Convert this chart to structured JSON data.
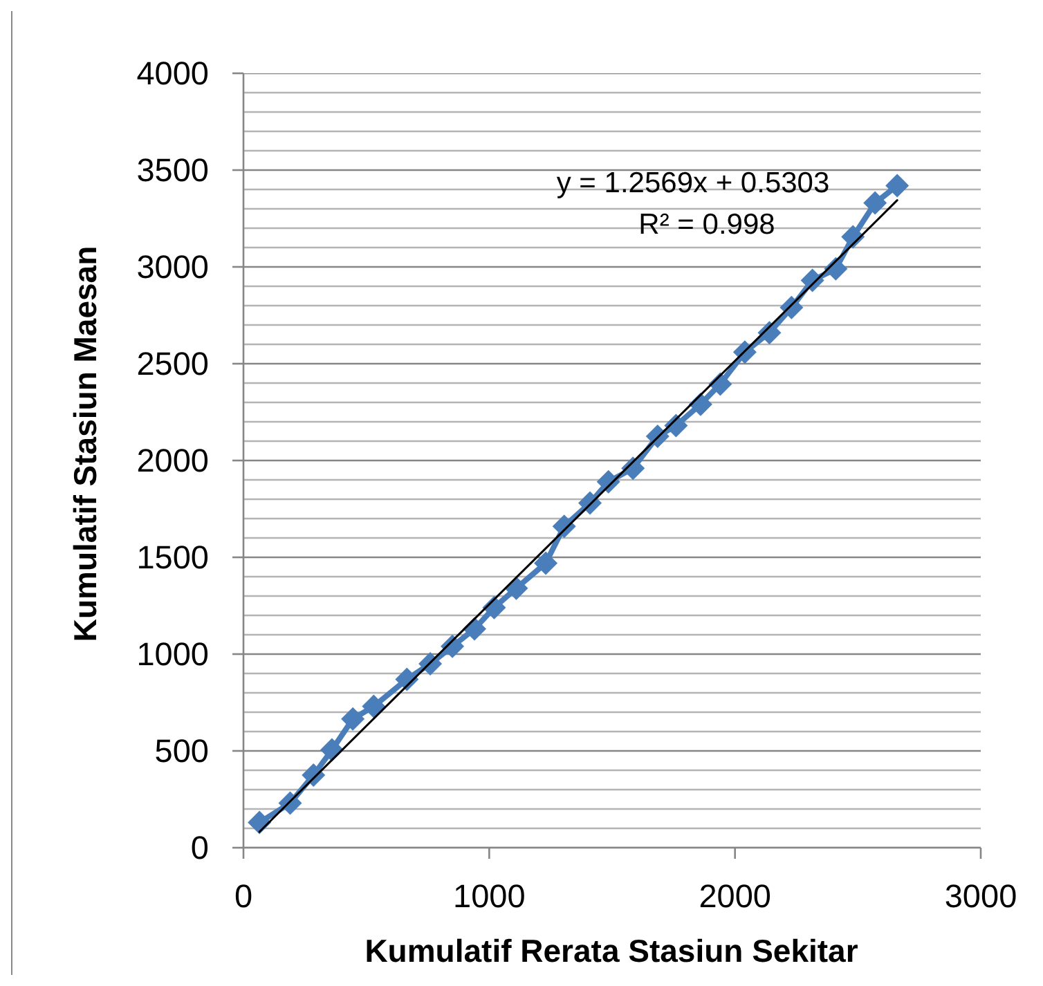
{
  "chart_data": {
    "type": "line",
    "xlabel": "Kumulatif Rerata Stasiun Sekitar",
    "ylabel": "Kumulatif Stasiun Maesan",
    "annotations": [
      "y = 1.2569x + 0.5303",
      "R² = 0.998"
    ],
    "xlim": [
      0,
      3000
    ],
    "xticks": [
      0,
      1000,
      2000,
      3000
    ],
    "ylim": [
      0,
      4000
    ],
    "yticks": [
      0,
      {
        "value": 100,
        "label": null
      },
      {
        "value": 200,
        "label": null
      },
      {
        "value": 300,
        "label": null
      },
      {
        "value": 400,
        "label": null
      },
      500,
      {
        "value": 600,
        "label": null
      },
      {
        "value": 700,
        "label": null
      },
      {
        "value": 800,
        "label": null
      },
      {
        "value": 900,
        "label": null
      },
      1000,
      {
        "value": 1100,
        "label": null
      },
      {
        "value": 1200,
        "label": null
      },
      {
        "value": 1300,
        "label": null
      },
      {
        "value": 1400,
        "label": null
      },
      1500,
      {
        "value": 1600,
        "label": null
      },
      {
        "value": 1700,
        "label": null
      },
      {
        "value": 1800,
        "label": null
      },
      {
        "value": 1900,
        "label": null
      },
      2000,
      {
        "value": 2100,
        "label": null
      },
      {
        "value": 2200,
        "label": null
      },
      {
        "value": 2300,
        "label": null
      },
      {
        "value": 2400,
        "label": null
      },
      2500,
      {
        "value": 2600,
        "label": null
      },
      {
        "value": 2700,
        "label": null
      },
      {
        "value": 2800,
        "label": null
      },
      {
        "value": 2900,
        "label": null
      },
      3000,
      {
        "value": 3100,
        "label": null
      },
      {
        "value": 3200,
        "label": null
      },
      {
        "value": 3300,
        "label": null
      },
      {
        "value": 3400,
        "label": null
      },
      3500,
      {
        "value": 3600,
        "label": null
      },
      {
        "value": 3700,
        "label": null
      },
      {
        "value": 3800,
        "label": null
      },
      {
        "value": 3900,
        "label": null
      },
      4000
    ],
    "grid": "y",
    "marker": "diamond",
    "series": [
      {
        "color": "#4a7ebb",
        "x": [
          65,
          190,
          285,
          360,
          445,
          530,
          665,
          760,
          850,
          940,
          1020,
          1110,
          1230,
          1305,
          1410,
          1485,
          1585,
          1685,
          1760,
          1860,
          1940,
          2040,
          2140,
          2230,
          2315,
          2410,
          2480,
          2570,
          2660
        ],
        "values": [
          130,
          230,
          375,
          505,
          665,
          730,
          870,
          950,
          1040,
          1130,
          1240,
          1340,
          1470,
          1660,
          1780,
          1890,
          1960,
          2125,
          2180,
          2290,
          2395,
          2560,
          2660,
          2790,
          2930,
          2990,
          3155,
          3330,
          3420
        ]
      },
      {
        "type": "line",
        "color": "#000000",
        "marker": "none",
        "x": [
          65,
          2660
        ],
        "values": [
          82,
          3344
        ]
      }
    ]
  }
}
